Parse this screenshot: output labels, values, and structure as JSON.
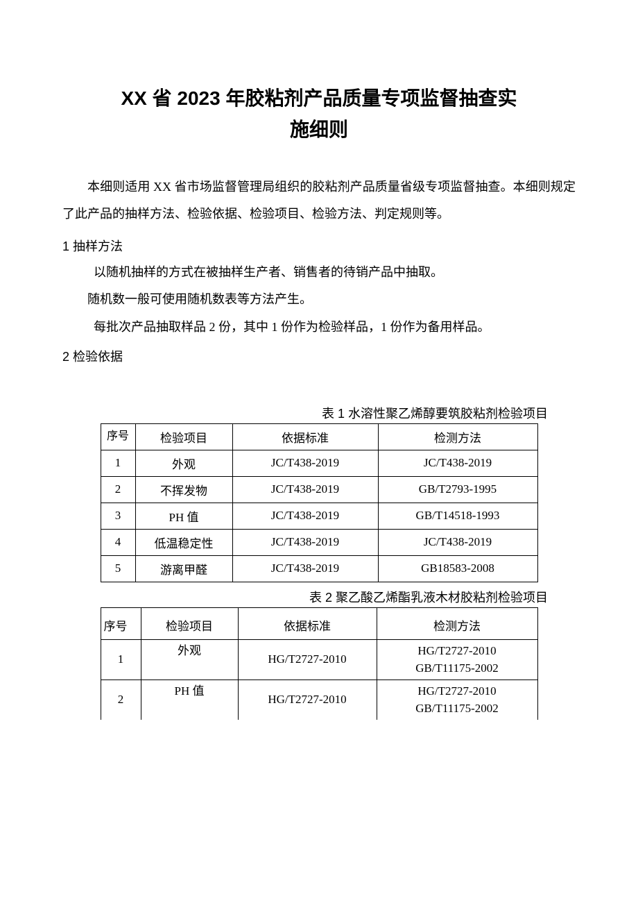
{
  "title_line1": "XX 省 2023 年胶粘剂产品质量专项监督抽查实",
  "title_line2": "施细则",
  "intro": "本细则适用 XX 省市场监督管理局组织的胶粘剂产品质量省级专项监督抽查。本细则规定了此产品的抽样方法、检验依据、检验项目、检验方法、判定规则等。",
  "section1_heading": "1 抽样方法",
  "section1_p1": "以随机抽样的方式在被抽样生产者、销售者的待销产品中抽取。",
  "section1_p2": "随机数一般可使用随机数表等方法产生。",
  "section1_p3": "每批次产品抽取样品 2 份，其中 1 份作为检验样品，1 份作为备用样品。",
  "section2_heading": "2 检验依据",
  "table1": {
    "caption": "表 1 水溶性聚乙烯醇要筑胶粘剂检验项目",
    "headers": [
      "序号",
      "检验项目",
      "依据标准",
      "检测方法"
    ],
    "rows": [
      [
        "1",
        "外观",
        "JC/T438-2019",
        "JC/T438-2019"
      ],
      [
        "2",
        "不挥发物",
        "JC/T438-2019",
        "GB/T2793-1995"
      ],
      [
        "3",
        "PH 值",
        "JC/T438-2019",
        "GB/T14518-1993"
      ],
      [
        "4",
        "低温稳定性",
        "JC/T438-2019",
        "JC/T438-2019"
      ],
      [
        "5",
        "游离甲醛",
        "JC/T438-2019",
        "GB18583-2008"
      ]
    ]
  },
  "table2": {
    "caption": "表 2 聚乙酸乙烯酯乳液木材胶粘剂检验项目",
    "headers": [
      "序号",
      "检验项目",
      "依据标准",
      "检测方法"
    ],
    "rows": [
      {
        "seq": "1",
        "item": "外观",
        "basis": "HG/T2727-2010",
        "method_l1": "HG/T2727-2010",
        "method_l2": "GB/T11175-2002"
      },
      {
        "seq": "2",
        "item": "PH 值",
        "basis": "HG/T2727-2010",
        "method_l1": "HG/T2727-2010",
        "method_l2": "GB/T11175-2002"
      }
    ]
  }
}
